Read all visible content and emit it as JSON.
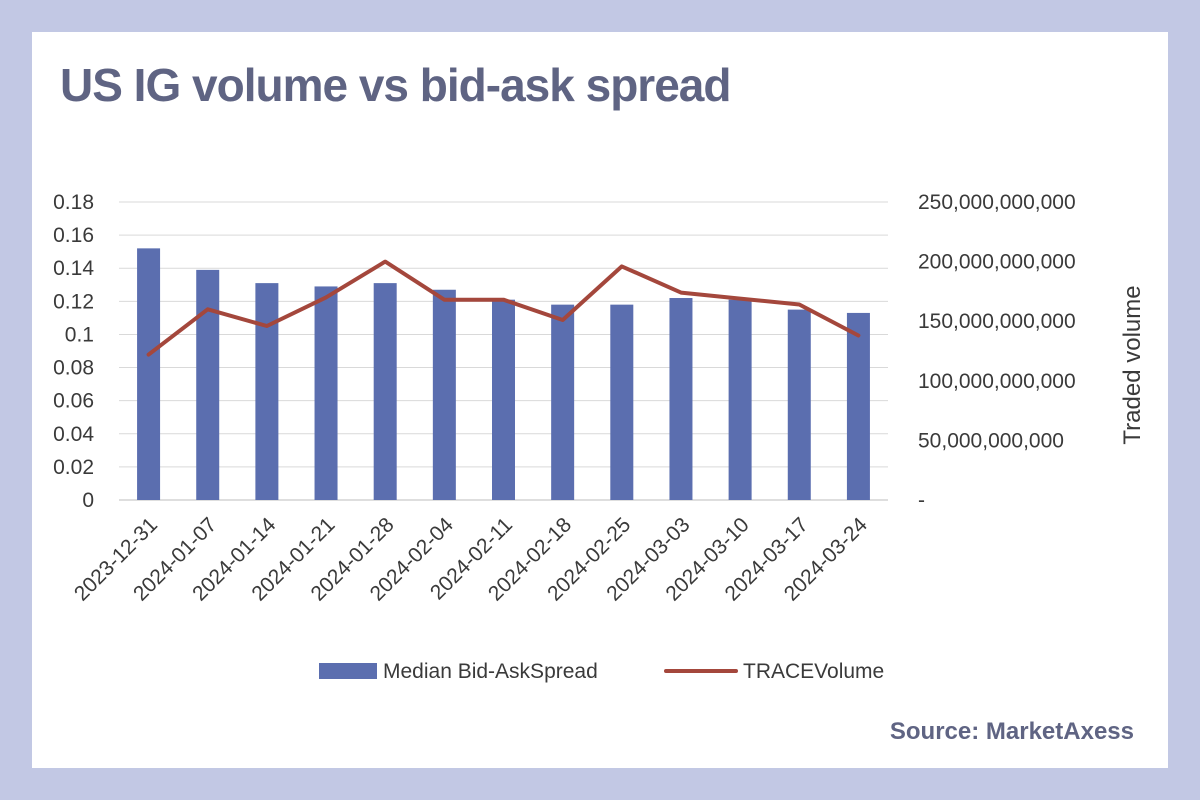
{
  "card": {
    "title": "US IG volume vs bid-ask spread",
    "source": "Source: MarketAxess"
  },
  "chart_data": {
    "type": "bar",
    "title": "US IG volume vs bid-ask spread",
    "categories": [
      "2023-12-31",
      "2024-01-07",
      "2024-01-14",
      "2024-01-21",
      "2024-01-28",
      "2024-02-04",
      "2024-02-11",
      "2024-02-18",
      "2024-02-25",
      "2024-03-03",
      "2024-03-10",
      "2024-03-17",
      "2024-03-24"
    ],
    "series": [
      {
        "name": "Median Bid-AskSpread",
        "type": "bar",
        "axis": "left",
        "color": "#5b6eaf",
        "values": [
          0.152,
          0.139,
          0.131,
          0.129,
          0.131,
          0.127,
          0.121,
          0.118,
          0.118,
          0.122,
          0.121,
          0.115,
          0.113
        ]
      },
      {
        "name": "TRACEVolume",
        "type": "line",
        "axis": "right",
        "color": "#a4473c",
        "values": [
          122000000000,
          160000000000,
          146000000000,
          170000000000,
          200000000000,
          168000000000,
          168000000000,
          151000000000,
          196000000000,
          174000000000,
          169000000000,
          164000000000,
          138000000000
        ]
      }
    ],
    "y_left": {
      "range": [
        0,
        0.18
      ],
      "ticks": [
        0,
        0.02,
        0.04,
        0.06,
        0.08,
        0.1,
        0.12,
        0.14,
        0.16,
        0.18
      ],
      "tick_labels": [
        "0",
        "0.02",
        "0.04",
        "0.06",
        "0.08",
        "0.1",
        "0.12",
        "0.14",
        "0.16",
        "0.18"
      ]
    },
    "y_right": {
      "label": "Traded volume",
      "range": [
        0,
        250000000000
      ],
      "ticks": [
        0,
        50000000000,
        100000000000,
        150000000000,
        200000000000,
        250000000000
      ],
      "tick_labels": [
        "-",
        "50,000,000,000",
        "100,000,000,000",
        "150,000,000,000",
        "200,000,000,000",
        "250,000,000,000"
      ]
    },
    "grid": true,
    "legend": "bottom"
  }
}
